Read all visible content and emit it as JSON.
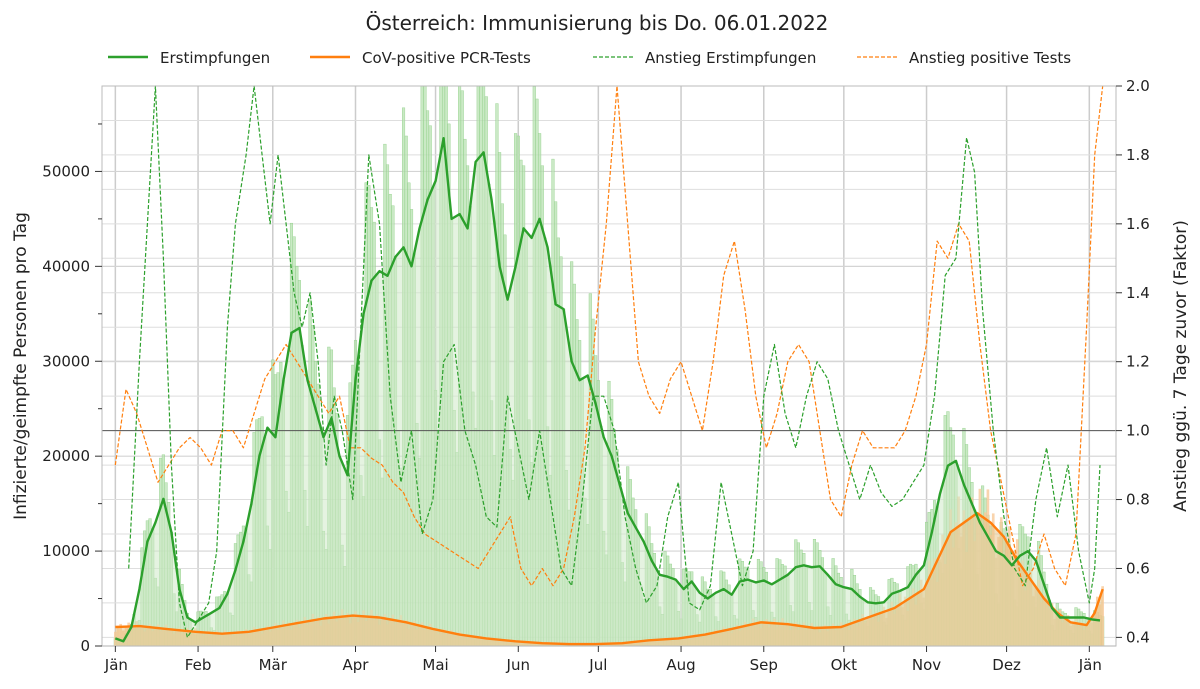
{
  "chart_data": {
    "type": "line",
    "title": "Österreich: Immunisierung bis Do. 06.01.2022",
    "ylabel": "Infizierte/geimpfte Personen pro Tag",
    "ylabel_right": "Anstieg ggü. 7 Tage zuvor (Faktor)",
    "ylim": [
      0,
      59000
    ],
    "ylim_right": [
      0.375,
      2.0
    ],
    "yticks": [
      0,
      10000,
      20000,
      30000,
      40000,
      50000
    ],
    "yticks_right": [
      0.4,
      0.6,
      0.8,
      1.0,
      1.2,
      1.4,
      1.6,
      1.8,
      2.0
    ],
    "reference_line_right": 1.0,
    "x_range": [
      "2021-01-01",
      "2022-01-06"
    ],
    "xtick_labels": [
      "Jän",
      "Feb",
      "Mär",
      "Apr",
      "Mai",
      "Jun",
      "Jul",
      "Aug",
      "Sep",
      "Okt",
      "Nov",
      "Dez",
      "Jän"
    ],
    "grid": true,
    "legend_position": "top",
    "colors": {
      "green": "#2ca02c",
      "orange": "#ff7f0e",
      "green_fill": "#b8e2b2",
      "orange_fill": "#f7c998"
    },
    "series": [
      {
        "name": "Erstimpfungen",
        "axis": "left",
        "style": "solid",
        "color": "#2ca02c",
        "x": [
          "2021-01-01",
          "2021-01-04",
          "2021-01-07",
          "2021-01-10",
          "2021-01-13",
          "2021-01-16",
          "2021-01-19",
          "2021-01-22",
          "2021-01-25",
          "2021-01-28",
          "2021-01-31",
          "2021-02-03",
          "2021-02-06",
          "2021-02-09",
          "2021-02-12",
          "2021-02-15",
          "2021-02-18",
          "2021-02-21",
          "2021-02-24",
          "2021-02-27",
          "2021-03-02",
          "2021-03-05",
          "2021-03-08",
          "2021-03-11",
          "2021-03-14",
          "2021-03-17",
          "2021-03-20",
          "2021-03-23",
          "2021-03-26",
          "2021-03-29",
          "2021-04-01",
          "2021-04-04",
          "2021-04-07",
          "2021-04-10",
          "2021-04-13",
          "2021-04-16",
          "2021-04-19",
          "2021-04-22",
          "2021-04-25",
          "2021-04-28",
          "2021-05-01",
          "2021-05-04",
          "2021-05-07",
          "2021-05-10",
          "2021-05-13",
          "2021-05-16",
          "2021-05-19",
          "2021-05-22",
          "2021-05-25",
          "2021-05-28",
          "2021-05-31",
          "2021-06-03",
          "2021-06-06",
          "2021-06-09",
          "2021-06-12",
          "2021-06-15",
          "2021-06-18",
          "2021-06-21",
          "2021-06-24",
          "2021-06-27",
          "2021-06-30",
          "2021-07-03",
          "2021-07-06",
          "2021-07-09",
          "2021-07-12",
          "2021-07-15",
          "2021-07-18",
          "2021-07-21",
          "2021-07-24",
          "2021-07-27",
          "2021-07-30",
          "2021-08-02",
          "2021-08-05",
          "2021-08-08",
          "2021-08-11",
          "2021-08-14",
          "2021-08-17",
          "2021-08-20",
          "2021-08-23",
          "2021-08-26",
          "2021-08-29",
          "2021-09-01",
          "2021-09-04",
          "2021-09-07",
          "2021-09-10",
          "2021-09-13",
          "2021-09-16",
          "2021-09-19",
          "2021-09-22",
          "2021-09-25",
          "2021-09-28",
          "2021-10-01",
          "2021-10-04",
          "2021-10-07",
          "2021-10-10",
          "2021-10-13",
          "2021-10-16",
          "2021-10-19",
          "2021-10-22",
          "2021-10-25",
          "2021-10-28",
          "2021-10-31",
          "2021-11-03",
          "2021-11-06",
          "2021-11-09",
          "2021-11-12",
          "2021-11-15",
          "2021-11-18",
          "2021-11-21",
          "2021-11-24",
          "2021-11-27",
          "2021-11-30",
          "2021-12-03",
          "2021-12-06",
          "2021-12-09",
          "2021-12-12",
          "2021-12-15",
          "2021-12-18",
          "2021-12-21",
          "2021-12-24",
          "2021-12-27",
          "2021-12-30",
          "2022-01-02",
          "2022-01-05"
        ],
        "y": [
          800,
          500,
          2000,
          6000,
          11000,
          13000,
          15500,
          12000,
          6000,
          3000,
          2500,
          3000,
          3500,
          4000,
          5500,
          8000,
          11000,
          15000,
          20000,
          23000,
          22000,
          28000,
          33000,
          33500,
          28000,
          25000,
          22000,
          24000,
          20000,
          18000,
          28000,
          35000,
          38500,
          39500,
          39000,
          41000,
          42000,
          40000,
          44000,
          47000,
          49000,
          53500,
          45000,
          45500,
          44000,
          51000,
          52000,
          47000,
          40000,
          36500,
          40000,
          44000,
          43000,
          45000,
          42000,
          36000,
          35500,
          30000,
          28000,
          28500,
          25500,
          22000,
          20000,
          17000,
          14000,
          12500,
          11000,
          9000,
          7500,
          7300,
          7000,
          6000,
          6800,
          5600,
          5000,
          5600,
          6000,
          5400,
          6800,
          7000,
          6700,
          6900,
          6500,
          7000,
          7500,
          8300,
          8500,
          8300,
          8400,
          7500,
          6500,
          6200,
          6000,
          5200,
          4600,
          4500,
          4600,
          5500,
          5800,
          6200,
          7500,
          8500,
          12000,
          16000,
          19000,
          19500,
          17000,
          15000,
          13000,
          11500,
          10000,
          9500,
          8500,
          9500,
          10000,
          9000,
          6500,
          4000,
          3000,
          3000,
          3000,
          3000,
          2800,
          2700
        ]
      },
      {
        "name": "CoV-positive PCR-Tests",
        "axis": "left",
        "style": "solid",
        "color": "#ff7f0e",
        "x": [
          "2021-01-01",
          "2021-01-10",
          "2021-01-20",
          "2021-01-31",
          "2021-02-10",
          "2021-02-20",
          "2021-02-28",
          "2021-03-10",
          "2021-03-20",
          "2021-03-31",
          "2021-04-10",
          "2021-04-20",
          "2021-04-30",
          "2021-05-10",
          "2021-05-20",
          "2021-05-31",
          "2021-06-10",
          "2021-06-20",
          "2021-06-30",
          "2021-07-10",
          "2021-07-20",
          "2021-07-31",
          "2021-08-10",
          "2021-08-20",
          "2021-08-31",
          "2021-09-10",
          "2021-09-20",
          "2021-09-30",
          "2021-10-10",
          "2021-10-20",
          "2021-10-31",
          "2021-11-05",
          "2021-11-10",
          "2021-11-15",
          "2021-11-20",
          "2021-11-25",
          "2021-11-30",
          "2021-12-05",
          "2021-12-10",
          "2021-12-15",
          "2021-12-20",
          "2021-12-25",
          "2021-12-31",
          "2022-01-03",
          "2022-01-06"
        ],
        "y": [
          2000,
          2100,
          1800,
          1500,
          1300,
          1500,
          1900,
          2400,
          2900,
          3200,
          3000,
          2500,
          1800,
          1200,
          800,
          500,
          300,
          200,
          200,
          300,
          600,
          800,
          1200,
          1800,
          2500,
          2300,
          1900,
          2000,
          3000,
          4000,
          6000,
          9000,
          12000,
          13000,
          14000,
          13000,
          11500,
          9000,
          7000,
          5000,
          3500,
          2500,
          2200,
          3500,
          6000
        ]
      },
      {
        "name": "Anstieg Erstimpfungen",
        "axis": "right",
        "style": "dashed",
        "color": "#2ca02c",
        "x": [
          "2021-01-06",
          "2021-01-10",
          "2021-01-13",
          "2021-01-16",
          "2021-01-19",
          "2021-01-22",
          "2021-01-25",
          "2021-01-28",
          "2021-02-01",
          "2021-02-05",
          "2021-02-08",
          "2021-02-12",
          "2021-02-15",
          "2021-02-19",
          "2021-02-22",
          "2021-02-25",
          "2021-02-28",
          "2021-03-03",
          "2021-03-06",
          "2021-03-09",
          "2021-03-12",
          "2021-03-15",
          "2021-03-18",
          "2021-03-21",
          "2021-03-24",
          "2021-03-27",
          "2021-03-31",
          "2021-04-03",
          "2021-04-06",
          "2021-04-10",
          "2021-04-14",
          "2021-04-18",
          "2021-04-22",
          "2021-04-26",
          "2021-04-30",
          "2021-05-04",
          "2021-05-08",
          "2021-05-12",
          "2021-05-16",
          "2021-05-20",
          "2021-05-24",
          "2021-05-28",
          "2021-06-01",
          "2021-06-05",
          "2021-06-09",
          "2021-06-13",
          "2021-06-17",
          "2021-06-21",
          "2021-06-25",
          "2021-06-29",
          "2021-07-03",
          "2021-07-07",
          "2021-07-11",
          "2021-07-15",
          "2021-07-19",
          "2021-07-23",
          "2021-07-27",
          "2021-07-31",
          "2021-08-04",
          "2021-08-08",
          "2021-08-12",
          "2021-08-16",
          "2021-08-20",
          "2021-08-24",
          "2021-08-28",
          "2021-09-01",
          "2021-09-05",
          "2021-09-09",
          "2021-09-13",
          "2021-09-17",
          "2021-09-21",
          "2021-09-25",
          "2021-09-29",
          "2021-10-03",
          "2021-10-07",
          "2021-10-11",
          "2021-10-15",
          "2021-10-19",
          "2021-10-23",
          "2021-10-27",
          "2021-10-31",
          "2021-11-04",
          "2021-11-08",
          "2021-11-12",
          "2021-11-16",
          "2021-11-19",
          "2021-11-22",
          "2021-11-26",
          "2021-11-30",
          "2021-12-04",
          "2021-12-08",
          "2021-12-12",
          "2021-12-16",
          "2021-12-20",
          "2021-12-24",
          "2021-12-28",
          "2022-01-01",
          "2022-01-03",
          "2022-01-05"
        ],
        "y": [
          0.6,
          1.2,
          1.6,
          2.2,
          1.5,
          0.9,
          0.5,
          0.4,
          0.45,
          0.5,
          0.65,
          1.3,
          1.6,
          1.8,
          2.1,
          1.8,
          1.6,
          1.8,
          1.6,
          1.4,
          1.3,
          1.4,
          1.2,
          0.9,
          1.1,
          1.0,
          0.8,
          1.3,
          1.8,
          1.6,
          1.1,
          0.85,
          1.0,
          0.7,
          0.8,
          1.2,
          1.25,
          1.0,
          0.9,
          0.75,
          0.72,
          1.1,
          0.95,
          0.8,
          1.0,
          0.8,
          0.6,
          0.55,
          0.8,
          1.1,
          1.1,
          1.0,
          0.75,
          0.6,
          0.5,
          0.55,
          0.75,
          0.85,
          0.5,
          0.48,
          0.55,
          0.85,
          0.7,
          0.55,
          0.65,
          1.1,
          1.25,
          1.05,
          0.95,
          1.1,
          1.2,
          1.15,
          1.0,
          0.9,
          0.8,
          0.9,
          0.82,
          0.78,
          0.8,
          0.85,
          0.9,
          1.1,
          1.45,
          1.5,
          1.85,
          1.75,
          1.35,
          1.0,
          0.75,
          0.6,
          0.55,
          0.8,
          0.95,
          0.75,
          0.9,
          0.65,
          0.5,
          0.6,
          0.9
        ]
      },
      {
        "name": "Anstieg positive Tests",
        "axis": "right",
        "style": "dashed",
        "color": "#ff7f0e",
        "x": [
          "2021-01-01",
          "2021-01-05",
          "2021-01-09",
          "2021-01-13",
          "2021-01-17",
          "2021-01-21",
          "2021-01-25",
          "2021-01-29",
          "2021-02-02",
          "2021-02-06",
          "2021-02-10",
          "2021-02-14",
          "2021-02-18",
          "2021-02-22",
          "2021-02-26",
          "2021-03-02",
          "2021-03-06",
          "2021-03-10",
          "2021-03-14",
          "2021-03-18",
          "2021-03-22",
          "2021-03-26",
          "2021-03-30",
          "2021-04-03",
          "2021-04-07",
          "2021-04-11",
          "2021-04-15",
          "2021-04-19",
          "2021-04-23",
          "2021-04-27",
          "2021-05-01",
          "2021-05-05",
          "2021-05-09",
          "2021-05-13",
          "2021-05-17",
          "2021-05-21",
          "2021-05-25",
          "2021-05-29",
          "2021-06-02",
          "2021-06-06",
          "2021-06-10",
          "2021-06-14",
          "2021-06-18",
          "2021-06-22",
          "2021-06-26",
          "2021-06-30",
          "2021-07-04",
          "2021-07-08",
          "2021-07-12",
          "2021-07-16",
          "2021-07-20",
          "2021-07-24",
          "2021-07-28",
          "2021-08-01",
          "2021-08-05",
          "2021-08-09",
          "2021-08-13",
          "2021-08-17",
          "2021-08-21",
          "2021-08-25",
          "2021-08-29",
          "2021-09-02",
          "2021-09-06",
          "2021-09-10",
          "2021-09-14",
          "2021-09-18",
          "2021-09-22",
          "2021-09-26",
          "2021-09-30",
          "2021-10-04",
          "2021-10-08",
          "2021-10-12",
          "2021-10-16",
          "2021-10-20",
          "2021-10-24",
          "2021-10-28",
          "2021-11-01",
          "2021-11-05",
          "2021-11-09",
          "2021-11-13",
          "2021-11-17",
          "2021-11-21",
          "2021-11-25",
          "2021-11-29",
          "2021-12-03",
          "2021-12-07",
          "2021-12-11",
          "2021-12-15",
          "2021-12-19",
          "2021-12-23",
          "2021-12-27",
          "2021-12-31",
          "2022-01-03",
          "2022-01-06"
        ],
        "y": [
          0.9,
          1.12,
          1.05,
          0.95,
          0.85,
          0.9,
          0.95,
          0.98,
          0.95,
          0.9,
          1.0,
          1.0,
          0.95,
          1.05,
          1.15,
          1.2,
          1.25,
          1.2,
          1.15,
          1.1,
          1.05,
          1.1,
          0.95,
          0.95,
          0.92,
          0.9,
          0.85,
          0.82,
          0.75,
          0.7,
          0.68,
          0.66,
          0.64,
          0.62,
          0.6,
          0.65,
          0.7,
          0.75,
          0.6,
          0.55,
          0.6,
          0.55,
          0.6,
          0.75,
          0.95,
          1.3,
          1.6,
          2.0,
          1.6,
          1.2,
          1.1,
          1.05,
          1.15,
          1.2,
          1.1,
          1.0,
          1.2,
          1.45,
          1.55,
          1.35,
          1.1,
          0.95,
          1.05,
          1.2,
          1.25,
          1.2,
          1.0,
          0.8,
          0.75,
          0.9,
          1.0,
          0.95,
          0.95,
          0.95,
          1.0,
          1.1,
          1.25,
          1.55,
          1.5,
          1.6,
          1.55,
          1.25,
          1.0,
          0.85,
          0.7,
          0.55,
          0.6,
          0.7,
          0.6,
          0.55,
          0.7,
          1.3,
          1.8,
          2.0
        ]
      }
    ],
    "bars": [
      {
        "name": "Erstimpfungen (daily)",
        "color": "#b8e2b2",
        "peak": 59000
      },
      {
        "name": "CoV-positive PCR-Tests (daily)",
        "color": "#f7c998",
        "peak": 17000
      }
    ]
  }
}
